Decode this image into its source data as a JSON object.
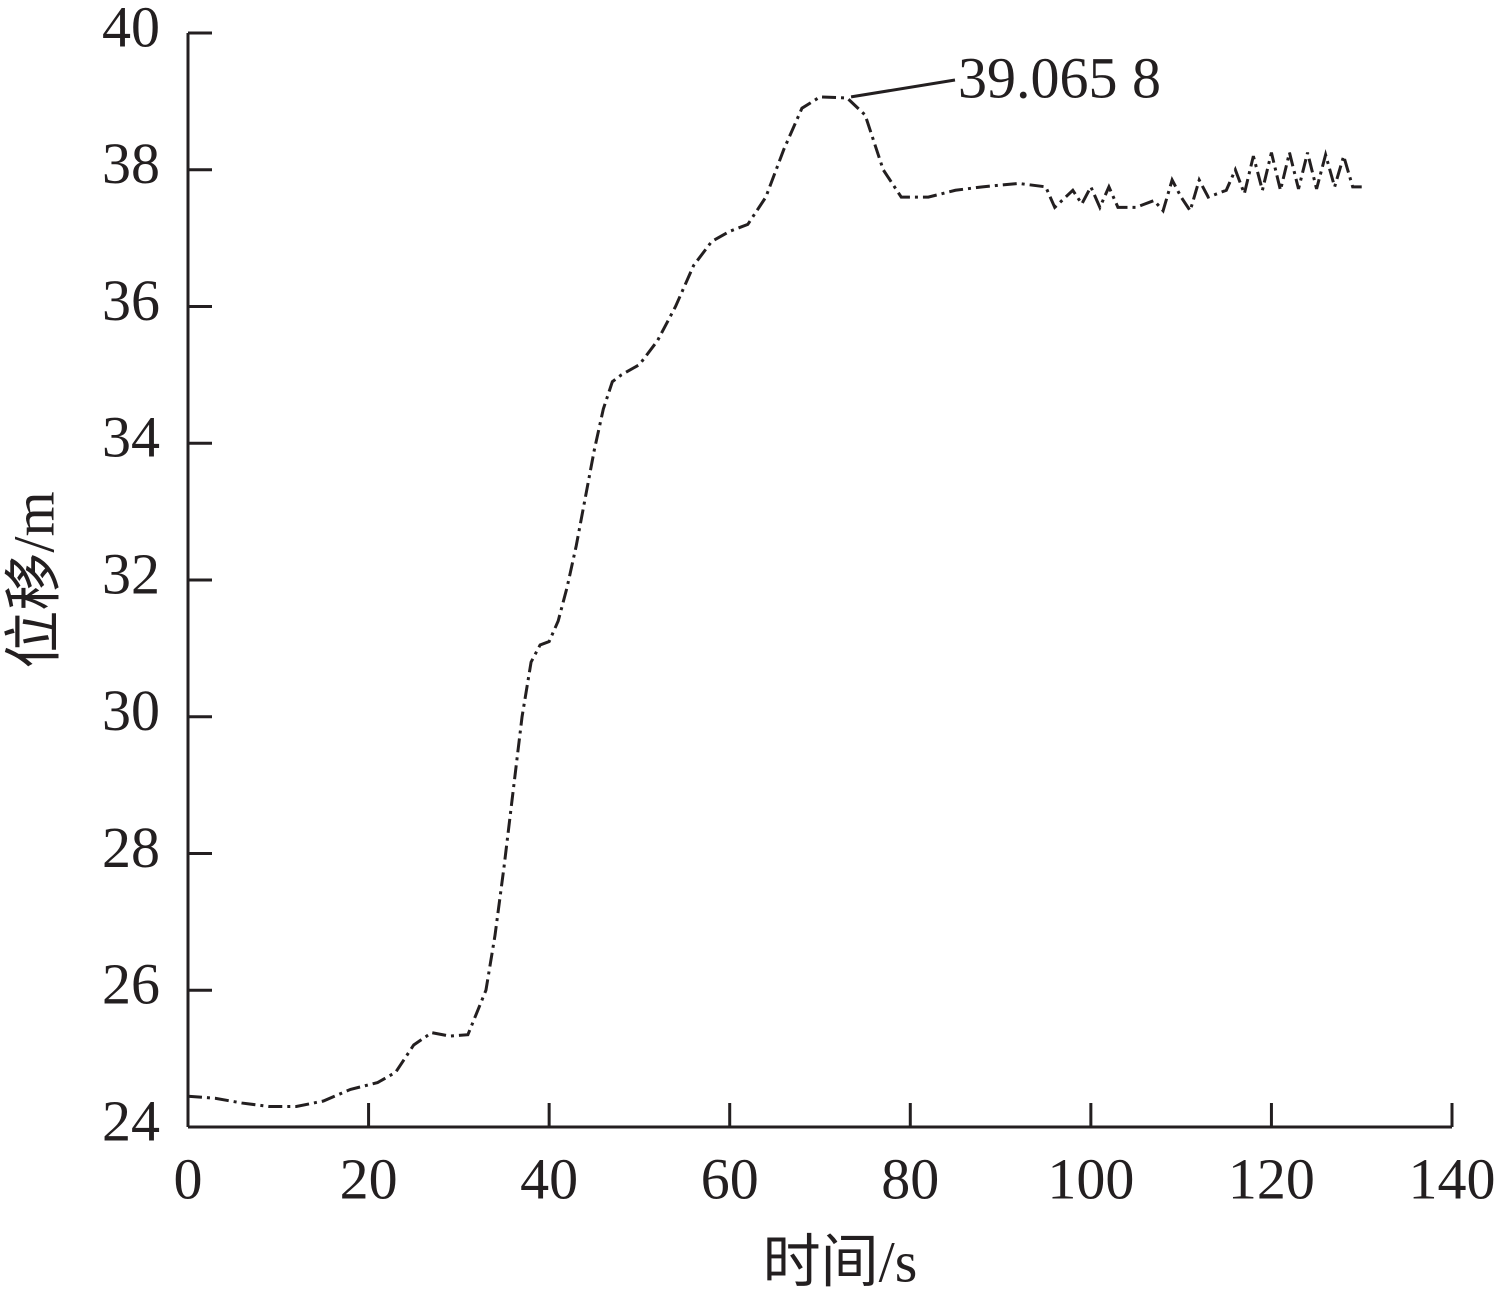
{
  "chart_data": {
    "type": "line",
    "x_label": "时间/s",
    "y_label": "位移/m",
    "x": [
      0,
      3,
      6,
      9,
      12,
      15,
      18,
      21,
      23,
      25,
      27,
      29,
      31,
      33,
      34,
      35,
      36,
      37,
      38,
      39,
      40,
      41,
      42,
      43,
      44,
      45,
      46,
      47,
      48,
      50,
      52,
      54,
      56,
      58,
      60,
      62,
      64,
      66,
      68,
      70,
      73,
      75,
      77,
      79,
      82,
      85,
      88,
      92,
      95,
      96,
      98,
      99,
      100,
      101,
      102,
      103,
      105,
      107,
      108,
      109,
      110,
      111,
      112,
      113,
      115,
      116,
      117,
      118,
      119,
      120,
      121,
      122,
      123,
      124,
      125,
      126,
      127,
      128,
      129,
      130
    ],
    "series": [
      {
        "color": "#231f20",
        "values": [
          24.45,
          24.42,
          24.35,
          24.3,
          24.3,
          24.38,
          24.55,
          24.65,
          24.8,
          25.2,
          25.38,
          25.33,
          25.35,
          26.0,
          26.8,
          27.8,
          28.9,
          30.0,
          30.8,
          31.05,
          31.1,
          31.4,
          31.9,
          32.5,
          33.2,
          33.9,
          34.5,
          34.9,
          35.0,
          35.15,
          35.5,
          36.0,
          36.6,
          36.95,
          37.1,
          37.2,
          37.6,
          38.3,
          38.9,
          39.0658,
          39.05,
          38.8,
          38.0,
          37.6,
          37.6,
          37.7,
          37.75,
          37.8,
          37.75,
          37.45,
          37.7,
          37.5,
          37.75,
          37.45,
          37.75,
          37.45,
          37.45,
          37.55,
          37.4,
          37.85,
          37.6,
          37.4,
          37.85,
          37.6,
          37.7,
          38.0,
          37.65,
          38.2,
          37.7,
          38.25,
          37.7,
          38.25,
          37.72,
          38.25,
          37.72,
          38.22,
          37.75,
          38.2,
          37.75,
          37.75
        ]
      }
    ],
    "annotation": {
      "text": "39.065 8",
      "x": 73,
      "y": 39.0658
    },
    "xlim": [
      0,
      140
    ],
    "xticks": [
      0,
      20,
      40,
      60,
      80,
      100,
      120,
      140
    ],
    "ylim": [
      24,
      40
    ],
    "yticks": [
      24,
      26,
      28,
      30,
      32,
      34,
      36,
      38,
      40
    ]
  }
}
